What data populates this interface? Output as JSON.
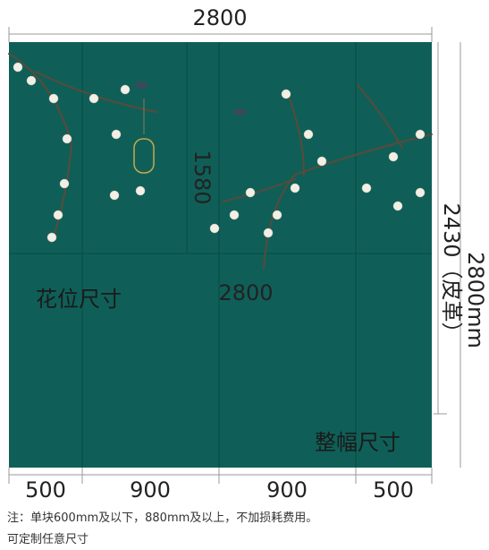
{
  "dimensions": {
    "top_width": "2800",
    "flower_height": "1580",
    "flower_width": "2800",
    "leather_height": "2430（皮革）",
    "total_height": "2800mm",
    "panels": [
      "500",
      "900",
      "900",
      "500"
    ]
  },
  "labels": {
    "flower_size": "花位尺寸",
    "full_size": "整幅尺寸"
  },
  "note": {
    "line1": "注：单块600mm及以下，880mm及以上，不加损耗费用。",
    "line2": "可定制任意尺寸"
  }
}
